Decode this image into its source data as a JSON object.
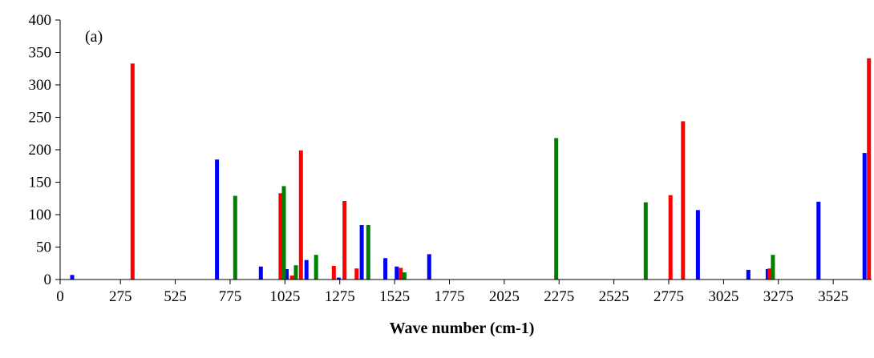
{
  "chart_data": {
    "type": "bar",
    "title": "",
    "annotation": "(a)",
    "xlabel": "Wave number (cm-1)",
    "ylabel": "",
    "xlim": [
      0,
      3700
    ],
    "ylim": [
      0,
      400
    ],
    "xticks": [
      0,
      275,
      525,
      775,
      1025,
      1275,
      1525,
      1775,
      2025,
      2275,
      2525,
      2775,
      3025,
      3275,
      3525
    ],
    "yticks": [
      0,
      50,
      100,
      150,
      200,
      250,
      300,
      350,
      400
    ],
    "grid": false,
    "legend": "none",
    "series": [
      {
        "color": "#0000ff",
        "points": [
          [
            55,
            7
          ],
          [
            715,
            185
          ],
          [
            915,
            20
          ],
          [
            1033,
            16
          ],
          [
            1123,
            30
          ],
          [
            1270,
            3
          ],
          [
            1375,
            84
          ],
          [
            1483,
            33
          ],
          [
            1535,
            20
          ],
          [
            1683,
            39
          ],
          [
            2908,
            107
          ],
          [
            3138,
            15
          ],
          [
            3226,
            16
          ],
          [
            3458,
            120
          ],
          [
            3668,
            195
          ]
        ]
      },
      {
        "color": "#ff0000",
        "points": [
          [
            330,
            333
          ],
          [
            1005,
            133
          ],
          [
            1057,
            6
          ],
          [
            1098,
            199
          ],
          [
            1248,
            21
          ],
          [
            1297,
            121
          ],
          [
            1352,
            17
          ],
          [
            1553,
            18
          ],
          [
            2783,
            130
          ],
          [
            2840,
            244
          ],
          [
            3235,
            17
          ],
          [
            3688,
            341
          ]
        ]
      },
      {
        "color": "#008000",
        "points": [
          [
            798,
            129
          ],
          [
            1020,
            144
          ],
          [
            1075,
            22
          ],
          [
            1167,
            38
          ],
          [
            1405,
            84
          ],
          [
            1570,
            11
          ],
          [
            2262,
            218
          ],
          [
            2670,
            119
          ],
          [
            3250,
            38
          ]
        ]
      }
    ]
  }
}
